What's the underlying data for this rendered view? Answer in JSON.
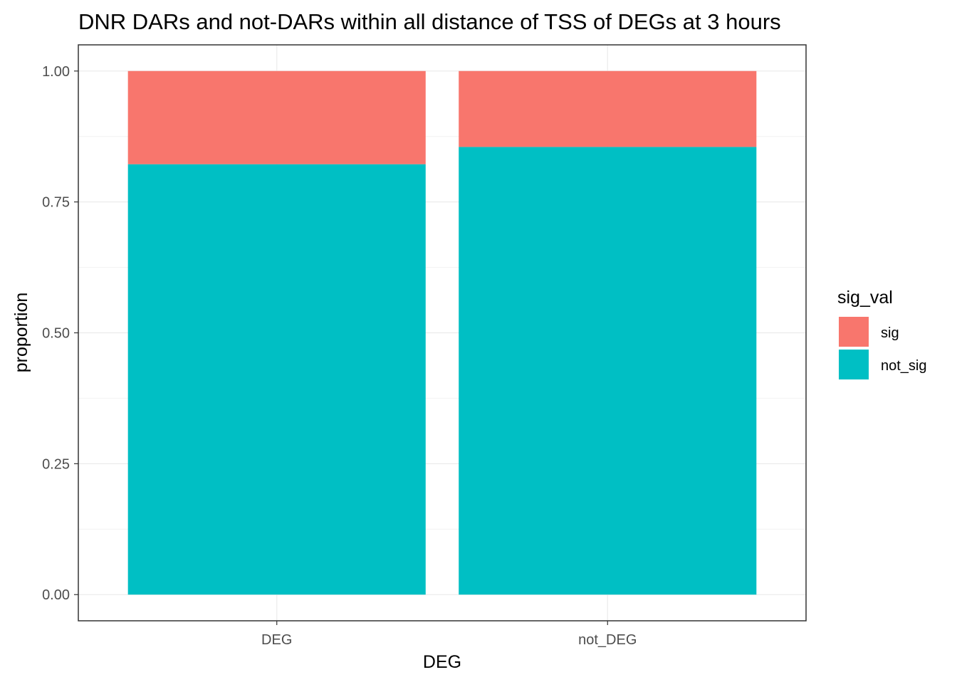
{
  "chart_data": {
    "type": "bar",
    "stacked": true,
    "title": "DNR DARs and not-DARs within all distance of TSS of DEGs at 3 hours",
    "xlabel": "DEG",
    "ylabel": "proportion",
    "categories": [
      "DEG",
      "not_DEG"
    ],
    "series": [
      {
        "name": "not_sig",
        "values": [
          0.822,
          0.855
        ],
        "color": "#00BFC4"
      },
      {
        "name": "sig",
        "values": [
          0.178,
          0.145
        ],
        "color": "#F8766D"
      }
    ],
    "ylim": [
      -0.05,
      1.05
    ],
    "y_ticks": [
      "0.00",
      "0.25",
      "0.50",
      "0.75",
      "1.00"
    ],
    "grid": true,
    "legend": {
      "title": "sig_val",
      "entries": [
        {
          "label": "sig",
          "color": "#F8766D"
        },
        {
          "label": "not_sig",
          "color": "#00BFC4"
        }
      ],
      "position": "right"
    }
  }
}
